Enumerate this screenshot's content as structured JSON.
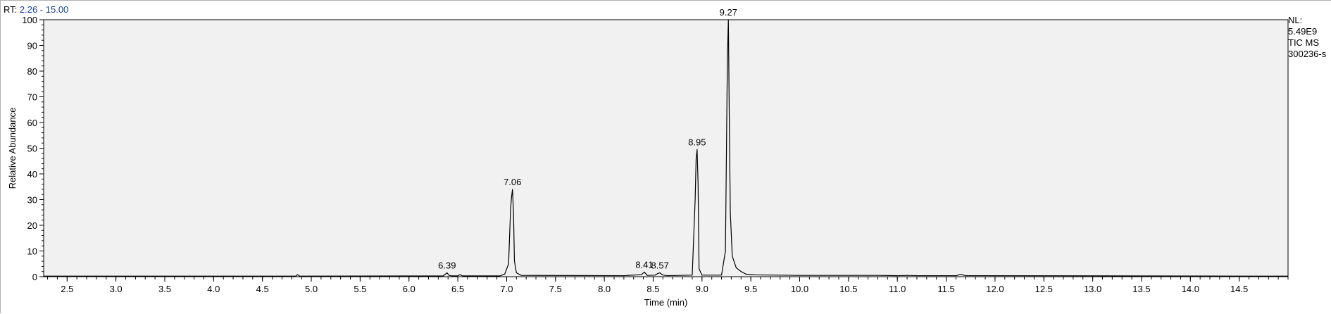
{
  "header": {
    "rt_prefix": "RT:",
    "rt_range": "2.26 - 15.00"
  },
  "side_info": {
    "nl_label": "NL:",
    "nl_value": "5.49E9",
    "scan_filter": "TIC  MS",
    "sample": "300236-s"
  },
  "colors": {
    "plot_background": "#f1f1f1",
    "trace": "#000000",
    "rt_range_text": "#1a3f9c"
  },
  "chart_data": {
    "type": "line",
    "title": "",
    "xlabel": "Time (min)",
    "ylabel": "Relative Abundance",
    "xlim": [
      2.26,
      15.0
    ],
    "ylim": [
      0,
      100
    ],
    "x_ticks": [
      "2.5",
      "3.0",
      "3.5",
      "4.0",
      "4.5",
      "5.0",
      "5.5",
      "6.0",
      "6.5",
      "7.0",
      "7.5",
      "8.0",
      "8.5",
      "9.0",
      "9.5",
      "10.0",
      "10.5",
      "11.0",
      "11.5",
      "12.0",
      "12.5",
      "13.0",
      "13.5",
      "14.0",
      "14.5"
    ],
    "y_ticks": [
      "0",
      "10",
      "20",
      "30",
      "40",
      "50",
      "60",
      "70",
      "80",
      "90",
      "100"
    ],
    "grid": false,
    "series": [
      {
        "x": [
          2.26,
          4.84,
          4.86,
          4.88,
          6.35,
          6.38,
          6.39,
          6.41,
          6.44,
          6.5,
          6.52,
          6.55,
          6.93,
          6.98,
          7.02,
          7.04,
          7.05,
          7.06,
          7.07,
          7.08,
          7.1,
          7.15,
          8.2,
          8.38,
          8.41,
          8.44,
          8.52,
          8.55,
          8.57,
          8.59,
          8.62,
          8.65,
          8.9,
          8.93,
          8.94,
          8.95,
          8.96,
          8.97,
          9.0,
          9.2,
          9.24,
          9.26,
          9.27,
          9.28,
          9.29,
          9.31,
          9.35,
          9.4,
          9.45,
          9.55,
          10.0,
          10.8,
          11.0,
          11.1,
          11.2,
          11.6,
          11.65,
          11.7,
          15.0
        ],
        "y": [
          0.2,
          0.2,
          0.8,
          0.2,
          0.3,
          1.2,
          1.5,
          0.5,
          0.3,
          0.3,
          0.8,
          0.3,
          0.3,
          1.0,
          5.0,
          26.0,
          31.0,
          34.0,
          25.0,
          6.0,
          1.5,
          0.5,
          0.4,
          0.8,
          1.8,
          0.5,
          0.6,
          1.3,
          1.5,
          0.8,
          0.5,
          0.4,
          0.6,
          30.0,
          46.0,
          49.5,
          36.0,
          3.0,
          0.6,
          0.6,
          10.0,
          85.0,
          100.0,
          60.0,
          25.0,
          8.0,
          3.5,
          2.0,
          1.0,
          0.7,
          0.5,
          0.5,
          0.4,
          0.5,
          0.4,
          0.4,
          0.9,
          0.4,
          0.2
        ]
      }
    ],
    "peak_labels": [
      {
        "text": "6.39",
        "x": 6.39,
        "y": 1.5
      },
      {
        "text": "7.06",
        "x": 7.06,
        "y": 34.0
      },
      {
        "text": "8.41",
        "x": 8.41,
        "y": 1.8
      },
      {
        "text": "8.57",
        "x": 8.57,
        "y": 1.5
      },
      {
        "text": "8.95",
        "x": 8.95,
        "y": 49.5
      },
      {
        "text": "9.27",
        "x": 9.27,
        "y": 100.0
      }
    ]
  }
}
